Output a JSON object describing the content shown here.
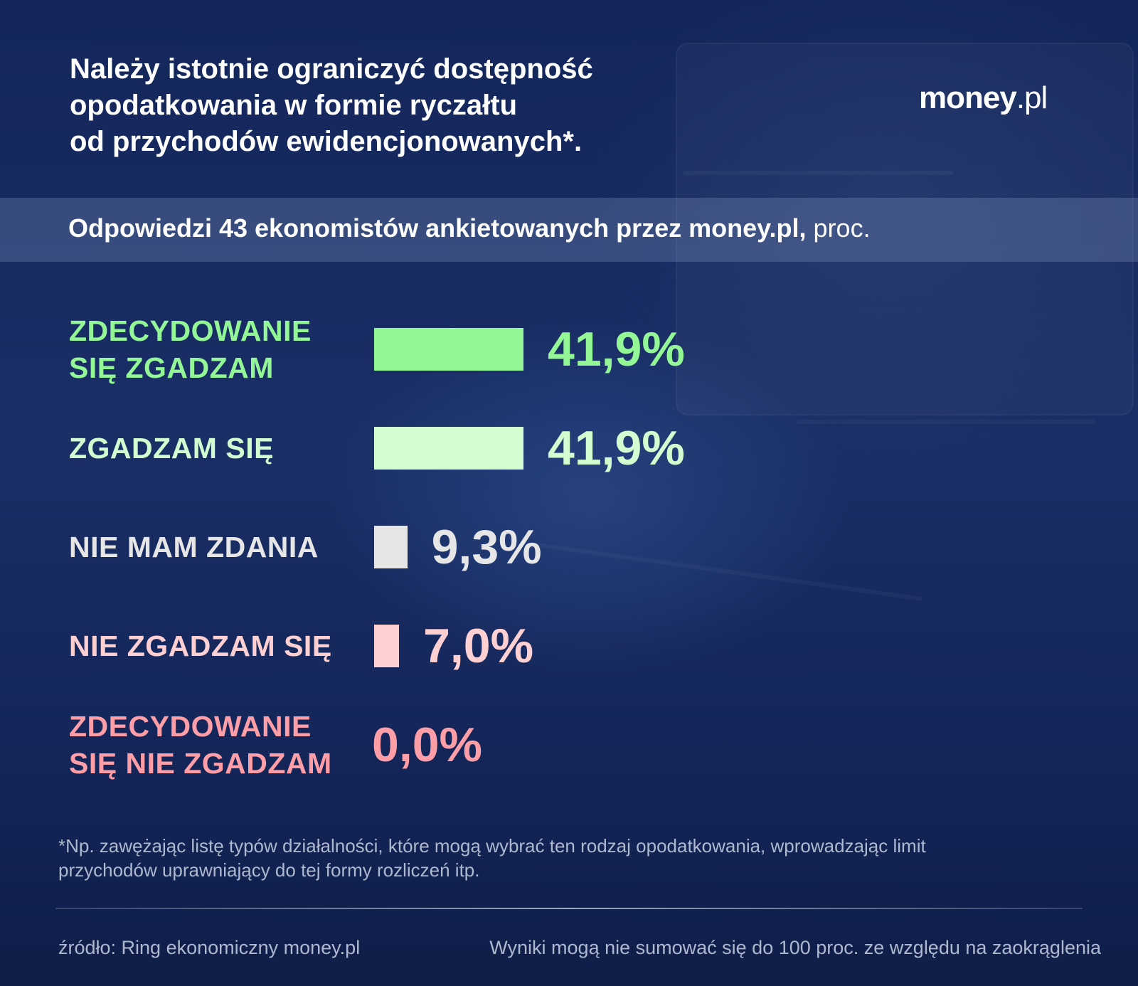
{
  "title": "Należy istotnie ograniczyć dostępność\nopodatkowania w formie ryczałtu\nod przychodów ewidencjonowanych*.",
  "logo": {
    "bold": "money",
    "light": ".pl"
  },
  "subtitle": {
    "bold": "Odpowiedzi 43 ekonomistów ankietowanych przez money.pl,",
    "regular": " proc."
  },
  "chart_data": {
    "type": "bar",
    "orientation": "horizontal",
    "categories": [
      "ZDECYDOWANIE\nSIĘ ZGADZAM",
      "ZGADZAM SIĘ",
      "NIE MAM ZDANIA",
      "NIE ZGADZAM SIĘ",
      "ZDECYDOWANIE\nSIĘ NIE ZGADZAM"
    ],
    "values": [
      41.9,
      41.9,
      9.3,
      7.0,
      0.0
    ],
    "value_labels": [
      "41,9%",
      "41,9%",
      "9,3%",
      "7,0%",
      "0,0%"
    ],
    "colors": [
      "#93f796",
      "#d2fdd0",
      "#e6e6e6",
      "#ffd0d2",
      "#ff9ea6"
    ],
    "label_colors": [
      "#93f796",
      "#d2fdd0",
      "#e6e6e6",
      "#ffd0d2",
      "#ff9ea6"
    ],
    "grid": false,
    "legend": "none"
  },
  "footnote": "*Np. zawężając listę typów działalności, które mogą wybrać ten rodzaj opodatkowania, wprowadzając limit przychodów uprawniający do tej formy rozliczeń itp.",
  "source": "źródło: Ring ekonomiczny money.pl",
  "note": "Wyniki mogą nie sumować się do 100 proc. ze względu na zaokrąglenia"
}
